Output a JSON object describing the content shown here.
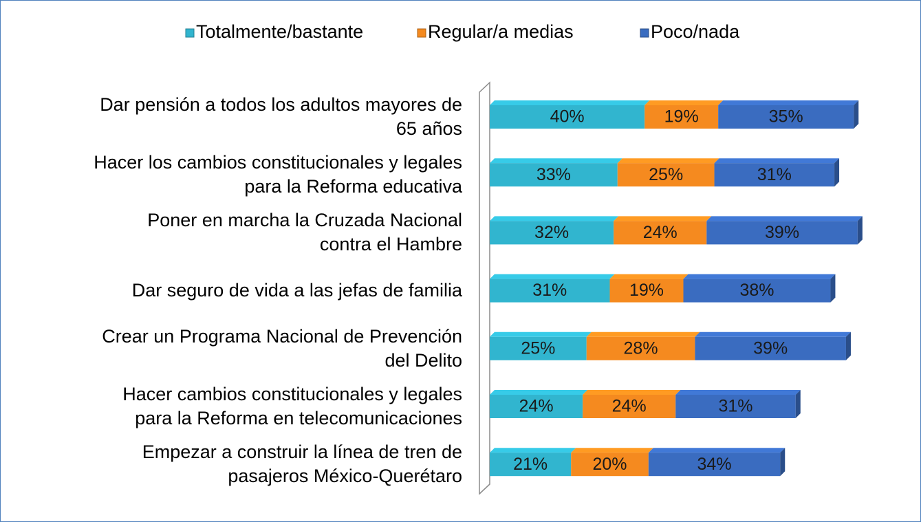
{
  "chart_data": {
    "type": "stacked-bar-horizontal",
    "categories": [
      "Dar pensión a todos los adultos mayores de\n65 años",
      "Hacer los cambios constitucionales y legales\npara la Reforma educativa",
      "Poner en marcha la Cruzada Nacional\ncontra el Hambre",
      "Dar seguro de vida a las jefas de familia",
      "Crear un Programa Nacional de Prevención\ndel Delito",
      "Hacer cambios constitucionales y legales\npara la Reforma en telecomunicaciones",
      "Empezar a construir la línea de tren de\npasajeros México-Querétaro"
    ],
    "series": [
      {
        "name": "Totalmente/bastante",
        "color": "#31b5cf",
        "values": [
          40,
          33,
          32,
          31,
          25,
          24,
          21
        ],
        "value_labels": [
          "40%",
          "33%",
          "32%",
          "31%",
          "25%",
          "24%",
          "21%"
        ]
      },
      {
        "name": "Regular/a medias",
        "color": "#f58a1f",
        "values": [
          19,
          25,
          24,
          19,
          28,
          24,
          20
        ],
        "value_labels": [
          "19%",
          "25%",
          "24%",
          "19%",
          "28%",
          "24%",
          "20%"
        ]
      },
      {
        "name": "Poco/nada",
        "color": "#3a6cc0",
        "values": [
          35,
          31,
          39,
          38,
          39,
          31,
          34
        ],
        "value_labels": [
          "35%",
          "31%",
          "39%",
          "38%",
          "39%",
          "31%",
          "34%"
        ]
      }
    ],
    "legend": "top"
  }
}
